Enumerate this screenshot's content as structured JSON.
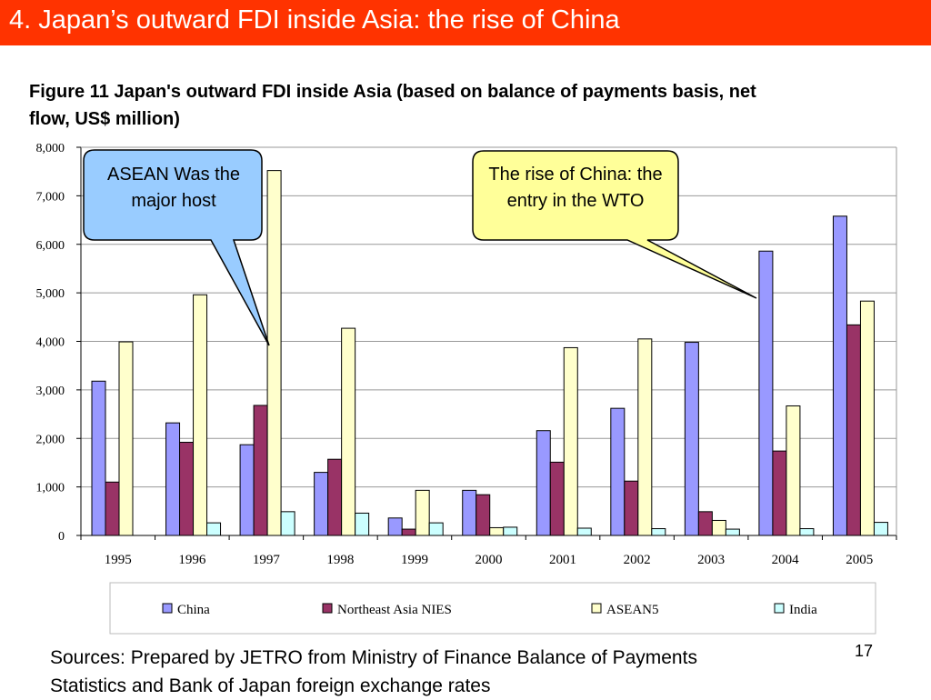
{
  "slide": {
    "title": "4. Japan’s outward FDI inside Asia: the rise of China",
    "page_number": "17",
    "sources": "Sources: Prepared by JETRO from Ministry of Finance Balance of Payments Statistics and Bank of Japan foreign exchange rates"
  },
  "colors": {
    "title_bar": "#ff3300"
  },
  "callouts": {
    "asean": {
      "text": "ASEAN Was the major host",
      "fill": "#99ccff"
    },
    "china": {
      "text": "The rise of China: the entry in the WTO",
      "fill": "#ffff99"
    }
  },
  "chart_data": {
    "type": "bar",
    "title": "Figure 11 Japan's outward FDI inside Asia (based on balance of payments basis, net flow, US$ million)",
    "categories": [
      "1995",
      "1996",
      "1997",
      "1998",
      "1999",
      "2000",
      "2001",
      "2002",
      "2003",
      "2004",
      "2005"
    ],
    "ylim": [
      0,
      8000
    ],
    "yticks": [
      "0",
      "1,000",
      "2,000",
      "3,000",
      "4,000",
      "5,000",
      "6,000",
      "7,000",
      "8,000"
    ],
    "grid": true,
    "legend_position": "bottom",
    "series": [
      {
        "name": "China",
        "color": "#9999ff",
        "values": [
          3180,
          2320,
          1870,
          1300,
          360,
          930,
          2160,
          2620,
          3980,
          5860,
          6580
        ]
      },
      {
        "name": "Northeast Asia NIES",
        "color": "#993366",
        "values": [
          1100,
          1920,
          2680,
          1570,
          130,
          840,
          1510,
          1120,
          490,
          1740,
          4340
        ]
      },
      {
        "name": "ASEAN5",
        "color": "#ffffcc",
        "values": [
          3990,
          4960,
          7520,
          4270,
          930,
          160,
          3870,
          4050,
          310,
          2670,
          4830
        ]
      },
      {
        "name": "India",
        "color": "#ccffff",
        "values": [
          0,
          260,
          490,
          460,
          260,
          170,
          150,
          140,
          130,
          140,
          270
        ]
      }
    ]
  }
}
